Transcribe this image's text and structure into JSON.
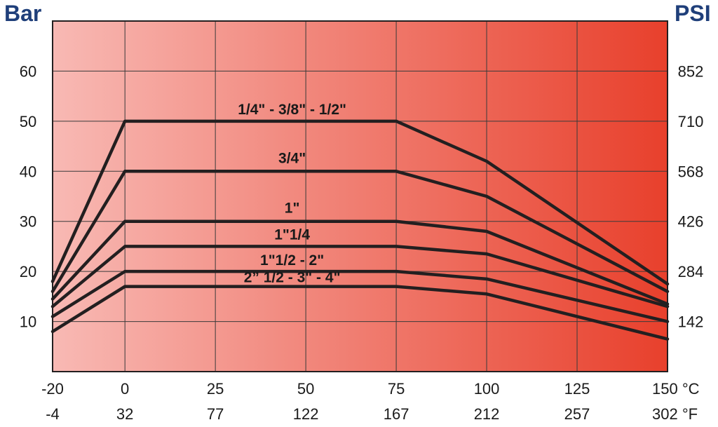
{
  "chart_data": {
    "type": "line",
    "title": "",
    "left_axis_label": "Bar",
    "right_axis_label": "PSI",
    "x_primary": {
      "unit": "°C",
      "ticks": [
        -20,
        0,
        25,
        50,
        75,
        100,
        125,
        150
      ],
      "tick_labels": [
        "-20",
        "0",
        "25",
        "50",
        "75",
        "100",
        "125",
        "150 °C"
      ]
    },
    "x_secondary": {
      "unit": "°F",
      "tick_labels": [
        "-4",
        "32",
        "77",
        "122",
        "167",
        "212",
        "257",
        "302 °F"
      ]
    },
    "y_left": {
      "unit": "Bar",
      "range": [
        0,
        70
      ],
      "ticks": [
        10,
        20,
        30,
        40,
        50,
        60
      ],
      "tick_labels": [
        "10",
        "20",
        "30",
        "40",
        "50",
        "60"
      ]
    },
    "y_right": {
      "unit": "PSI",
      "tick_labels": [
        "142",
        "284",
        "426",
        "568",
        "710",
        "852"
      ]
    },
    "xlim": [
      -20,
      150
    ],
    "grid": true,
    "background_gradient": [
      "#f8b9b4",
      "#e8402c"
    ],
    "series": [
      {
        "name": "1/4\" - 3/8\" - 1/2\"",
        "x": [
          -20,
          0,
          75,
          100,
          150
        ],
        "y": [
          18,
          50,
          50,
          42,
          17.5
        ]
      },
      {
        "name": "3/4\"",
        "x": [
          -20,
          0,
          75,
          100,
          150
        ],
        "y": [
          16,
          40,
          40,
          35,
          16
        ]
      },
      {
        "name": "1\"",
        "x": [
          -20,
          0,
          75,
          100,
          150
        ],
        "y": [
          14.5,
          30,
          30,
          28,
          13.5
        ]
      },
      {
        "name": "1\"1/4",
        "x": [
          -20,
          0,
          75,
          100,
          150
        ],
        "y": [
          13,
          25,
          25,
          23.5,
          13
        ]
      },
      {
        "name": "1\"1/2 - 2\"",
        "x": [
          -20,
          0,
          75,
          100,
          150
        ],
        "y": [
          11,
          20,
          20,
          18.5,
          10
        ]
      },
      {
        "name": "2” 1/2 - 3\" - 4\"",
        "x": [
          -20,
          0,
          75,
          100,
          150
        ],
        "y": [
          8,
          17,
          17,
          15.5,
          6.5
        ]
      }
    ]
  }
}
